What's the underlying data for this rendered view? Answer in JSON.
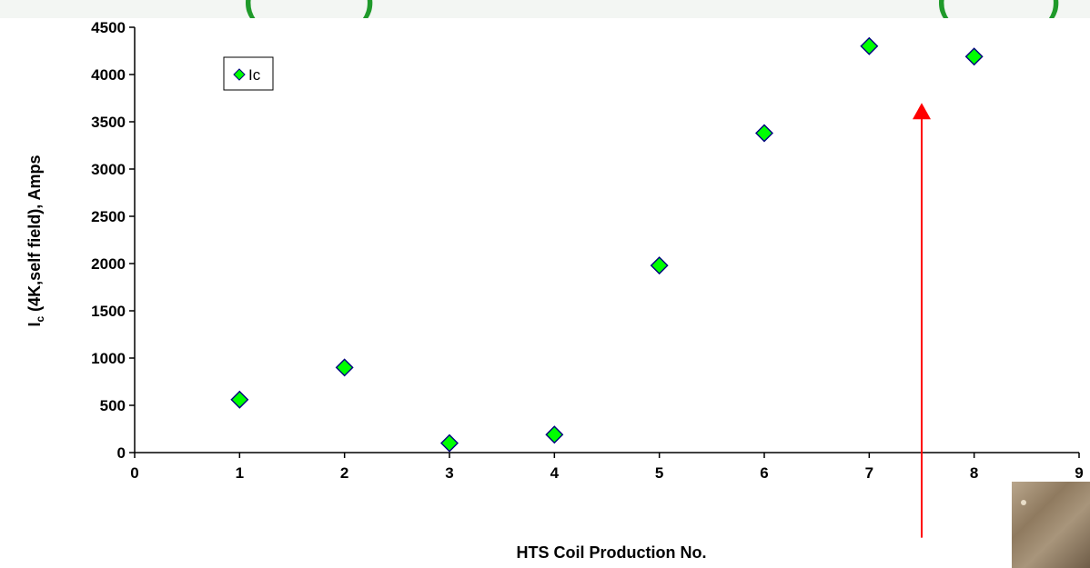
{
  "header": {
    "fragments": [
      "(",
      ")",
      "(",
      ")"
    ]
  },
  "chart_data": {
    "type": "scatter",
    "title": "",
    "xlabel": "HTS Coil Production No.",
    "ylabel_main": "I",
    "ylabel_sub": "c",
    "ylabel_rest": " (4K,self field), Amps",
    "xlim": [
      0,
      9
    ],
    "ylim": [
      0,
      4500
    ],
    "xticks": [
      0,
      1,
      2,
      3,
      4,
      5,
      6,
      7,
      8,
      9
    ],
    "yticks": [
      0,
      500,
      1000,
      1500,
      2000,
      2500,
      3000,
      3500,
      4000,
      4500
    ],
    "grid": false,
    "legend": {
      "position": "top-left",
      "entries": [
        "Ic"
      ]
    },
    "series": [
      {
        "name": "Ic",
        "color": "#00ff00",
        "edge_color": "#000080",
        "marker": "diamond",
        "x": [
          1,
          2,
          3,
          4,
          5,
          6,
          7,
          8
        ],
        "y": [
          560,
          900,
          100,
          190,
          1980,
          3380,
          4300,
          4190
        ]
      }
    ],
    "annotations": [
      {
        "type": "arrow",
        "color": "#ff0000",
        "x": 7.5,
        "y_from": -900,
        "y_to": 3700
      }
    ]
  }
}
